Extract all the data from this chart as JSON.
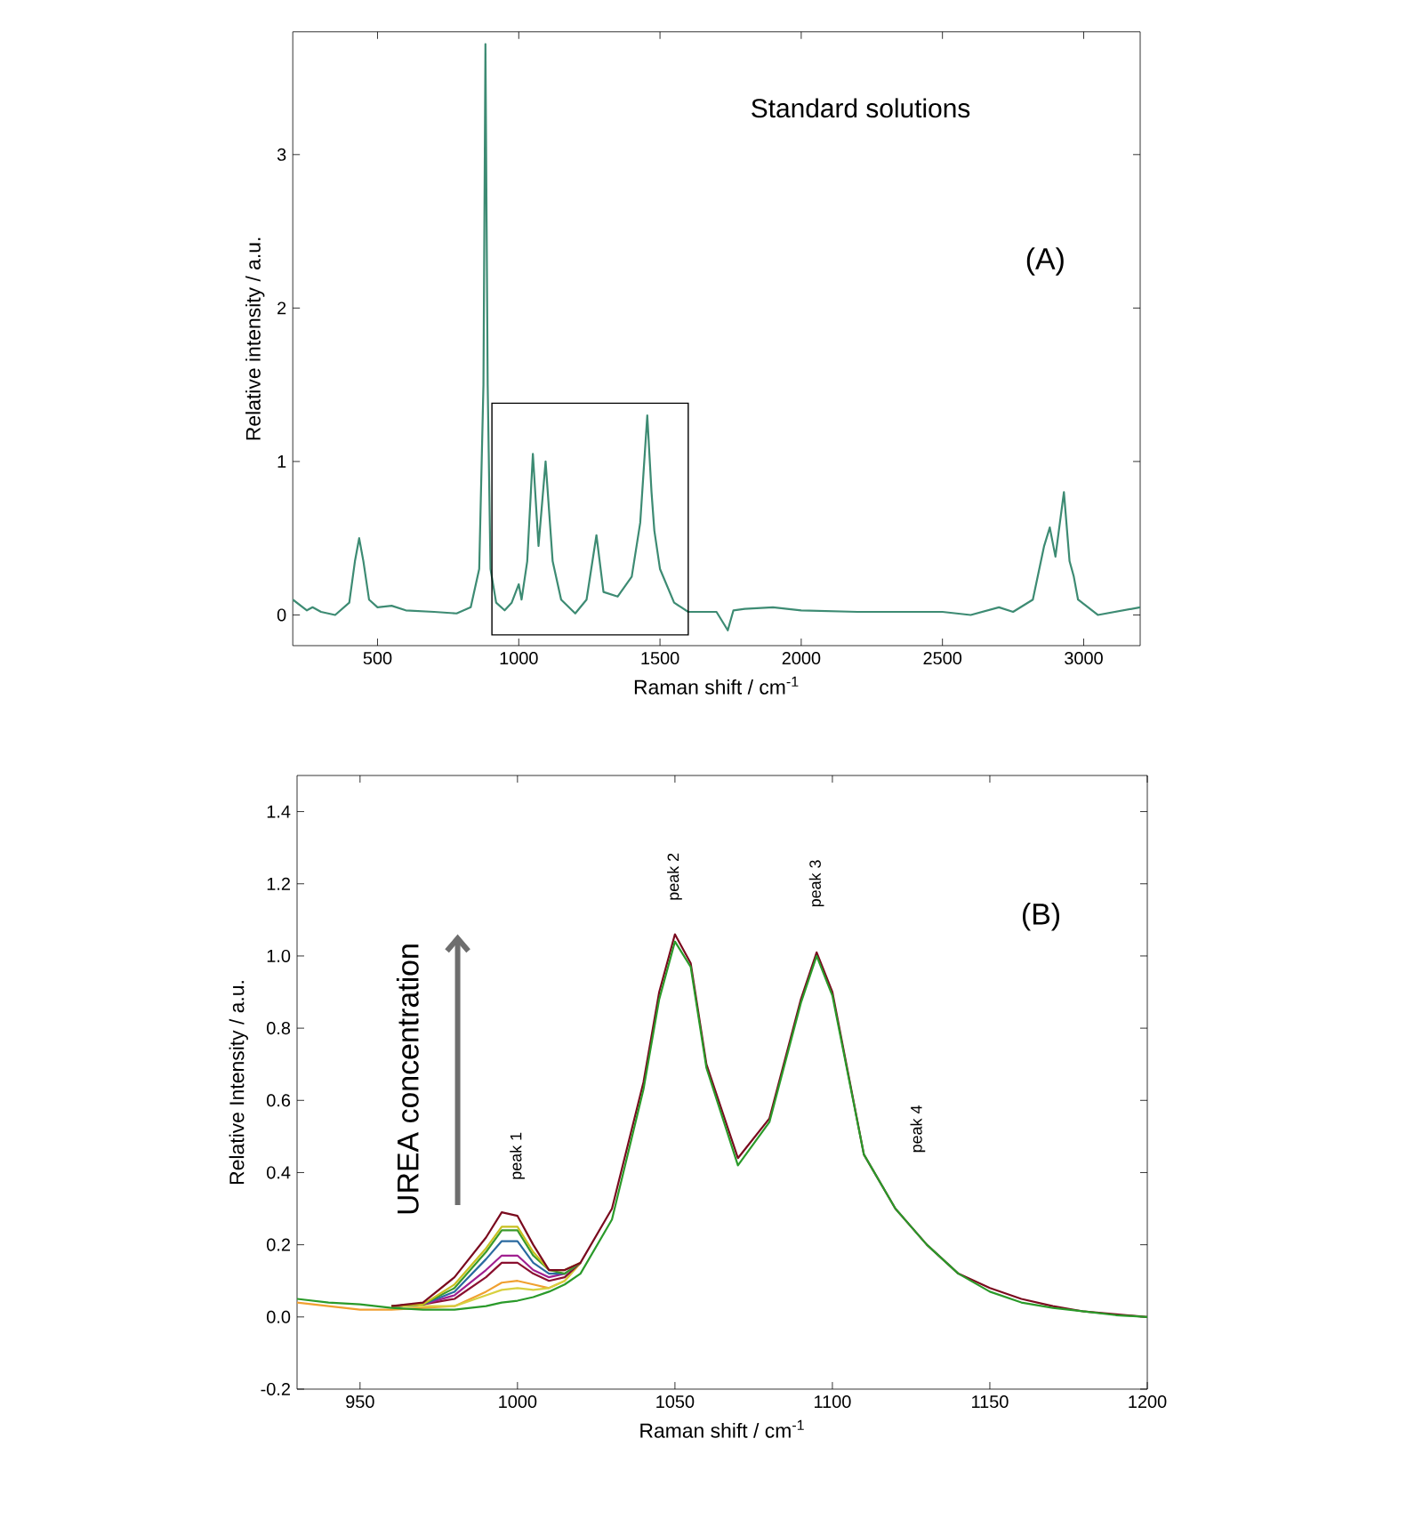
{
  "chart_data": [
    {
      "type": "line",
      "title": "Standard solutions",
      "xlabel": "Raman shift / cm$^{-1}$",
      "ylabel": "Relative intensity / a.u.",
      "annotations": [
        "(A)"
      ],
      "x": [
        200,
        250,
        270,
        300,
        350,
        400,
        420,
        435,
        450,
        470,
        500,
        550,
        600,
        700,
        780,
        830,
        860,
        875,
        882,
        890,
        900,
        920,
        950,
        975,
        1000,
        1010,
        1030,
        1050,
        1070,
        1095,
        1120,
        1150,
        1200,
        1240,
        1275,
        1300,
        1350,
        1400,
        1430,
        1455,
        1470,
        1480,
        1500,
        1550,
        1600,
        1700,
        1740,
        1760,
        1800,
        1900,
        2000,
        2200,
        2500,
        2600,
        2700,
        2750,
        2820,
        2860,
        2880,
        2900,
        2930,
        2950,
        2965,
        2980,
        3050,
        3200
      ],
      "series": [
        {
          "color": "#3d8b73",
          "values": [
            0.1,
            0.03,
            0.05,
            0.02,
            0.0,
            0.08,
            0.35,
            0.5,
            0.35,
            0.1,
            0.05,
            0.06,
            0.03,
            0.02,
            0.01,
            0.05,
            0.3,
            1.5,
            3.72,
            1.5,
            0.3,
            0.08,
            0.03,
            0.08,
            0.2,
            0.1,
            0.35,
            1.05,
            0.45,
            1.0,
            0.35,
            0.1,
            0.01,
            0.1,
            0.52,
            0.15,
            0.12,
            0.25,
            0.6,
            1.3,
            0.8,
            0.55,
            0.3,
            0.08,
            0.02,
            0.02,
            -0.1,
            0.03,
            0.04,
            0.05,
            0.03,
            0.02,
            0.02,
            0.0,
            0.05,
            0.02,
            0.1,
            0.45,
            0.57,
            0.38,
            0.8,
            0.35,
            0.25,
            0.1,
            0.0,
            0.05
          ]
        }
      ],
      "xlim": [
        200,
        3200
      ],
      "ylim": [
        -0.2,
        3.8
      ],
      "xticks": [
        500,
        1000,
        1500,
        2000,
        2500,
        3000
      ],
      "yticks": [
        0,
        1,
        2,
        3
      ]
    },
    {
      "type": "line",
      "xlabel": "Raman shift / cm$^{-1}$",
      "ylabel": "Relative Intensity / a.u.",
      "annotations": [
        "UREA concentration",
        "(B)",
        "peak 1",
        "peak 2",
        "peak 3",
        "peak 4"
      ],
      "x": [
        930,
        940,
        950,
        960,
        970,
        980,
        990,
        995,
        1000,
        1005,
        1010,
        1015,
        1020,
        1030,
        1040,
        1045,
        1050,
        1055,
        1060,
        1070,
        1080,
        1090,
        1095,
        1100,
        1110,
        1120,
        1130,
        1140,
        1150,
        1160,
        1170,
        1180,
        1190,
        1200
      ],
      "series": [
        {
          "color": "#f0a030",
          "values": [
            0.04,
            0.03,
            0.02,
            0.02,
            0.025,
            0.03,
            0.07,
            0.095,
            0.1,
            0.09,
            0.08,
            0.1,
            0.15,
            null,
            null,
            null,
            null,
            null,
            null,
            null,
            null,
            null,
            null,
            null,
            null,
            null,
            null,
            null,
            null,
            null,
            null,
            null,
            null,
            null
          ]
        },
        {
          "color": "#d8d040",
          "values": [
            null,
            null,
            null,
            0.03,
            0.03,
            0.03,
            0.06,
            0.075,
            0.08,
            0.075,
            0.08,
            0.1,
            0.15,
            null,
            null,
            null,
            null,
            null,
            null,
            null,
            null,
            null,
            null,
            null,
            null,
            null,
            null,
            null,
            null,
            null,
            null,
            null,
            null,
            null
          ]
        },
        {
          "color": "#8a1030",
          "values": [
            null,
            null,
            null,
            0.03,
            0.035,
            0.05,
            0.11,
            0.15,
            0.15,
            0.12,
            0.1,
            0.11,
            0.15,
            null,
            null,
            null,
            null,
            null,
            null,
            null,
            null,
            null,
            null,
            null,
            null,
            null,
            null,
            null,
            null,
            null,
            null,
            null,
            null,
            null
          ]
        },
        {
          "color": "#a02090",
          "values": [
            null,
            null,
            null,
            0.03,
            0.035,
            0.06,
            0.13,
            0.17,
            0.17,
            0.13,
            0.11,
            0.12,
            0.15,
            null,
            null,
            null,
            null,
            null,
            null,
            null,
            null,
            null,
            null,
            null,
            null,
            null,
            null,
            null,
            null,
            null,
            null,
            null,
            null,
            null
          ]
        },
        {
          "color": "#2a6aa0",
          "values": [
            null,
            null,
            null,
            0.03,
            0.035,
            0.07,
            0.16,
            0.21,
            0.21,
            0.15,
            0.12,
            0.12,
            0.15,
            null,
            null,
            null,
            null,
            null,
            null,
            null,
            null,
            null,
            null,
            null,
            null,
            null,
            null,
            null,
            null,
            null,
            null,
            null,
            null,
            null
          ]
        },
        {
          "color": "#3a9a2a",
          "values": [
            null,
            null,
            null,
            0.03,
            0.035,
            0.08,
            0.18,
            0.24,
            0.24,
            0.17,
            0.13,
            0.12,
            0.15,
            null,
            null,
            null,
            null,
            null,
            null,
            null,
            null,
            null,
            null,
            null,
            null,
            null,
            null,
            null,
            null,
            null,
            null,
            null,
            null,
            null
          ]
        },
        {
          "color": "#c8c020",
          "values": [
            null,
            null,
            null,
            0.03,
            0.035,
            0.09,
            0.19,
            0.25,
            0.25,
            0.18,
            0.13,
            0.13,
            0.15,
            null,
            null,
            null,
            null,
            null,
            null,
            null,
            null,
            null,
            null,
            null,
            null,
            null,
            null,
            null,
            null,
            null,
            null,
            null,
            null,
            null
          ]
        },
        {
          "color": "#7a0a1e",
          "values": [
            null,
            null,
            null,
            0.03,
            0.04,
            0.11,
            0.22,
            0.29,
            0.28,
            0.2,
            0.13,
            0.13,
            0.15,
            0.3,
            0.65,
            0.9,
            1.06,
            0.98,
            0.7,
            0.44,
            0.55,
            0.88,
            1.01,
            0.9,
            0.45,
            0.3,
            0.2,
            0.12,
            0.08,
            0.05,
            0.03,
            0.015,
            null,
            0.0
          ]
        },
        {
          "color": "#2a9a2a",
          "values": [
            0.05,
            0.04,
            0.035,
            0.025,
            0.02,
            0.02,
            0.03,
            0.04,
            0.045,
            0.055,
            0.07,
            0.09,
            0.12,
            0.27,
            0.63,
            0.88,
            1.04,
            0.97,
            0.69,
            0.42,
            0.54,
            0.87,
            1.0,
            0.89,
            0.45,
            0.3,
            0.2,
            0.12,
            0.07,
            0.04,
            0.025,
            0.015,
            0.005,
            0.0
          ]
        }
      ],
      "xlim": [
        930,
        1200
      ],
      "ylim": [
        -0.2,
        1.5
      ],
      "xticks": [
        950,
        1000,
        1050,
        1100,
        1150,
        1200
      ],
      "yticks": [
        {
          "value": -0.2,
          "label": "-0.2"
        },
        {
          "value": 0,
          "label": "0.0"
        },
        {
          "value": 0.2,
          "label": "0.2"
        },
        {
          "value": 0.4,
          "label": "0.4"
        },
        {
          "value": 0.6,
          "label": "0.6"
        },
        {
          "value": 0.8,
          "label": "0.8"
        },
        {
          "value": 1.0,
          "label": "1.0"
        },
        {
          "value": 1.2,
          "label": "1.2"
        },
        {
          "value": 1.4,
          "label": "1.4"
        }
      ]
    }
  ]
}
